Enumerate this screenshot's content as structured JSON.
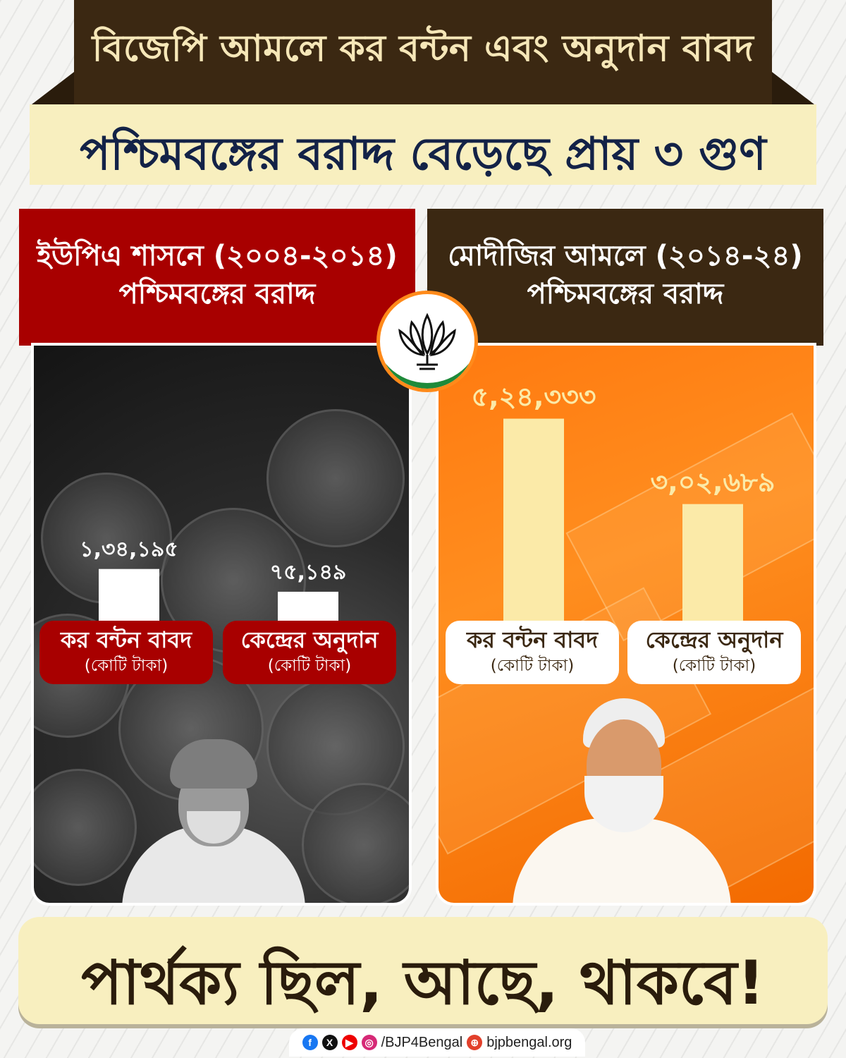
{
  "header": {
    "title": "বিজেপি আমলে কর বন্টন এবং অনুদান বাবদ",
    "subtitle": "পশ্চিমবঙ্গের বরাদ্দ বেড়েছে প্রায় ৩ গুণ"
  },
  "panels": {
    "left": {
      "line1": "ইউপিএ শাসনে (২০০৪-২০১৪)",
      "line2": "পশ্চিমবঙ্গের বরাদ্দ",
      "cat1": "কর বন্টন বাবদ",
      "cat2": "কেন্দ্রের অনুদান",
      "unit": "(কোটি টাকা)"
    },
    "right": {
      "line1": "মোদীজির আমলে (২০১৪-২৪)",
      "line2": "পশ্চিমবঙ্গের বরাদ্দ",
      "cat1": "কর বন্টন বাবদ",
      "cat2": "কেন্দ্রের অনুদান",
      "unit": "(কোটি টাকা)"
    }
  },
  "chart_data": [
    {
      "type": "bar",
      "categories": [
        "কর বন্টন বাবদ",
        "কেন্দ্রের অনুদান"
      ],
      "values": [
        134195,
        75149
      ],
      "labels": [
        "১,৩৪,১৯৫",
        "৭৫,১৪৯"
      ],
      "ylim": [
        0,
        540000
      ],
      "bar_color": "#ffffff",
      "label_color": "#ffffff"
    },
    {
      "type": "bar",
      "categories": [
        "কর বন্টন বাবদ",
        "কেন্দ্রের অনুদান"
      ],
      "values": [
        524333,
        302689
      ],
      "labels": [
        "৫,২৪,৩৩৩",
        "৩,০২,৬৮৯"
      ],
      "ylim": [
        0,
        540000
      ],
      "bar_color": "#fbeaa8",
      "label_color": "#fbeaa8"
    }
  ],
  "tagline": "পার্থক্য ছিল, আছে, থাকবে!",
  "footer": {
    "handle": "/BJP4Bengal",
    "website": "bjpbengal.org",
    "icons": [
      "facebook-icon",
      "x-icon",
      "youtube-icon",
      "instagram-icon",
      "globe-icon"
    ]
  },
  "colors": {
    "dark_brown": "#3b2812",
    "bjp_red": "#a80000",
    "saffron": "#ff7a10",
    "cream": "#f8efbf",
    "navy": "#132247"
  }
}
